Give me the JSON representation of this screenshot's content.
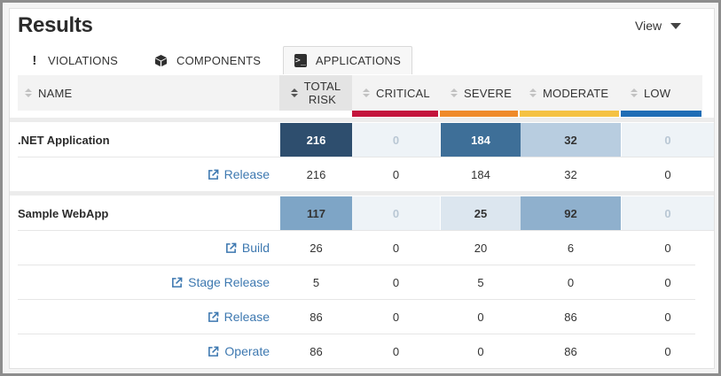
{
  "page": {
    "title": "Results",
    "view_label": "View"
  },
  "tabs": [
    {
      "label": "VIOLATIONS",
      "icon": "exclamation-icon",
      "active": false
    },
    {
      "label": "COMPONENTS",
      "icon": "cube-icon",
      "active": false
    },
    {
      "label": "APPLICATIONS",
      "icon": "terminal-icon",
      "active": true
    }
  ],
  "columns": {
    "name": "NAME",
    "total_line1": "TOTAL",
    "total_line2": "RISK",
    "critical": "CRITICAL",
    "severe": "SEVERE",
    "moderate": "MODERATE",
    "low": "LOW"
  },
  "colors": {
    "critical": "#c4143c",
    "severe": "#ef8a2a",
    "moderate": "#f5c242",
    "low": "#1f6db5",
    "heat_darkest": "#2e4e6e",
    "heat_dark": "#3e6f98",
    "heat_mid": "#7ea5c6",
    "heat_light": "#b8cde0",
    "heat_lightest": "#dce6ef",
    "heat_zero": "#eef3f7",
    "link": "#3d78b0"
  },
  "applications": [
    {
      "name": ".NET Application",
      "totals": {
        "total": "216",
        "critical": "0",
        "severe": "184",
        "moderate": "32",
        "low": "0"
      },
      "stages": [
        {
          "name": "Release",
          "total": "216",
          "critical": "0",
          "severe": "184",
          "moderate": "32",
          "low": "0"
        }
      ]
    },
    {
      "name": "Sample WebApp",
      "totals": {
        "total": "117",
        "critical": "0",
        "severe": "25",
        "moderate": "92",
        "low": "0"
      },
      "stages": [
        {
          "name": "Build",
          "total": "26",
          "critical": "0",
          "severe": "20",
          "moderate": "6",
          "low": "0"
        },
        {
          "name": "Stage Release",
          "total": "5",
          "critical": "0",
          "severe": "5",
          "moderate": "0",
          "low": "0"
        },
        {
          "name": "Release",
          "total": "86",
          "critical": "0",
          "severe": "0",
          "moderate": "86",
          "low": "0"
        },
        {
          "name": "Operate",
          "total": "86",
          "critical": "0",
          "severe": "0",
          "moderate": "86",
          "low": "0"
        }
      ]
    }
  ]
}
